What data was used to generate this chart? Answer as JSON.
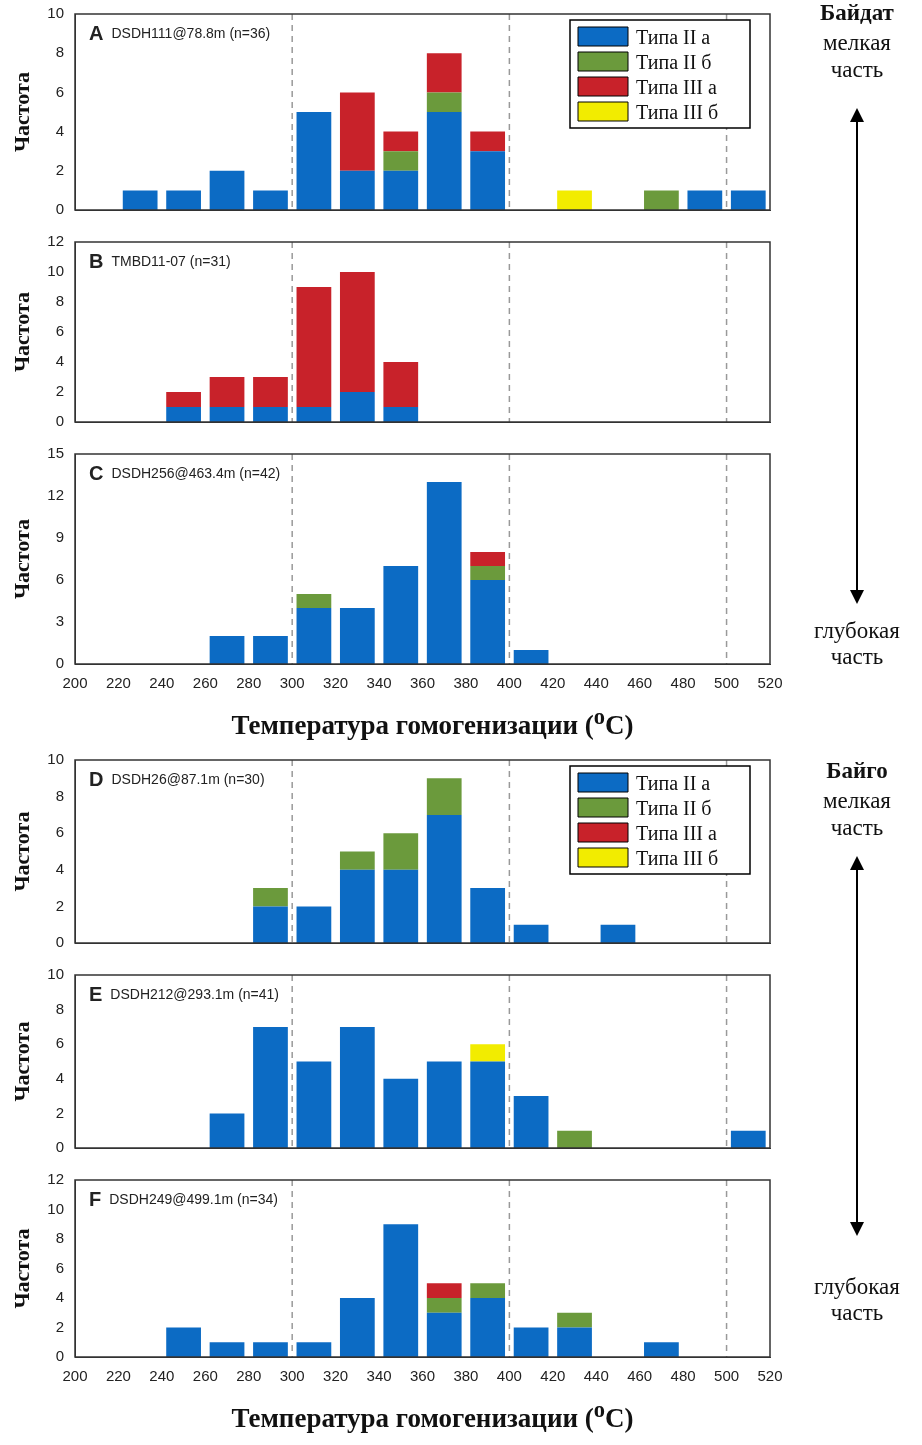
{
  "chart_data": [
    {
      "type": "bar",
      "ylabel": "Частота",
      "stacked": true,
      "legend": "top right",
      "tick_labels": "y",
      "x": [
        210,
        230,
        250,
        270,
        290,
        310,
        330,
        350,
        370,
        390,
        410,
        430,
        450,
        470,
        490,
        510
      ],
      "xlim": [
        200,
        520
      ],
      "xticks": [
        200,
        220,
        240,
        260,
        280,
        300,
        320,
        340,
        360,
        380,
        400,
        420,
        440,
        460,
        480,
        500,
        520
      ],
      "ylim": [
        0,
        10
      ],
      "yticks": [
        0,
        2,
        4,
        6,
        8,
        10
      ],
      "annotations": [
        "A",
        "DSDH111@78.8m (n=36)",
        "Байдат",
        "мелкая часть"
      ],
      "ref_lines": [
        {
          "axis": "x",
          "value": 300,
          "color": "#999999",
          "line_style": "dashed"
        },
        {
          "axis": "x",
          "value": 400,
          "color": "#999999",
          "line_style": "dashed"
        },
        {
          "axis": "x",
          "value": 500,
          "color": "#999999",
          "line_style": "dashed"
        }
      ],
      "series": [
        {
          "name": "Типа II а",
          "color": "#0c6bc4",
          "values": [
            0,
            1,
            1,
            2,
            1,
            5,
            2,
            2,
            5,
            3,
            0,
            0,
            0,
            0,
            1,
            1
          ]
        },
        {
          "name": "Типа II б",
          "color": "#6b9a3c",
          "values": [
            0,
            0,
            0,
            0,
            0,
            0,
            0,
            1,
            1,
            0,
            0,
            0,
            0,
            1,
            0,
            0
          ]
        },
        {
          "name": "Типа III а",
          "color": "#c8222a",
          "values": [
            0,
            0,
            0,
            0,
            0,
            0,
            4,
            1,
            2,
            1,
            0,
            0,
            0,
            0,
            0,
            0
          ]
        },
        {
          "name": "Типа III б",
          "color": "#f2ec00",
          "values": [
            0,
            0,
            0,
            0,
            0,
            0,
            0,
            0,
            0,
            0,
            0,
            1,
            0,
            0,
            0,
            0
          ]
        }
      ]
    },
    {
      "type": "bar",
      "ylabel": "Частота",
      "stacked": true,
      "tick_labels": "y",
      "x": [
        210,
        230,
        250,
        270,
        290,
        310,
        330,
        350,
        370,
        390,
        410,
        430,
        450,
        470,
        490,
        510
      ],
      "xlim": [
        200,
        520
      ],
      "xticks": [
        200,
        220,
        240,
        260,
        280,
        300,
        320,
        340,
        360,
        380,
        400,
        420,
        440,
        460,
        480,
        500,
        520
      ],
      "ylim": [
        0,
        12
      ],
      "yticks": [
        0,
        2,
        4,
        6,
        8,
        10,
        12
      ],
      "annotations": [
        "B",
        "TMBD11-07 (n=31)"
      ],
      "ref_lines": [
        {
          "axis": "x",
          "value": 300,
          "color": "#999999",
          "line_style": "dashed"
        },
        {
          "axis": "x",
          "value": 400,
          "color": "#999999",
          "line_style": "dashed"
        },
        {
          "axis": "x",
          "value": 500,
          "color": "#999999",
          "line_style": "dashed"
        }
      ],
      "series": [
        {
          "color": "#0c6bc4",
          "values": [
            0,
            0,
            1,
            1,
            1,
            1,
            2,
            1,
            0,
            0,
            0,
            0,
            0,
            0,
            0,
            0
          ]
        },
        {
          "color": "#c8222a",
          "values": [
            0,
            0,
            1,
            2,
            2,
            8,
            8,
            3,
            0,
            0,
            0,
            0,
            0,
            0,
            0,
            0
          ]
        }
      ]
    },
    {
      "type": "bar",
      "ylabel": "Частота",
      "xlabel": "Температура гомогенизации ($^{o}$C)",
      "stacked": true,
      "x": [
        210,
        230,
        250,
        270,
        290,
        310,
        330,
        350,
        370,
        390,
        410,
        430,
        450,
        470,
        490,
        510
      ],
      "xlim": [
        200,
        520
      ],
      "xticks": [
        200,
        220,
        240,
        260,
        280,
        300,
        320,
        340,
        360,
        380,
        400,
        420,
        440,
        460,
        480,
        500,
        520
      ],
      "ylim": [
        0,
        15
      ],
      "yticks": [
        0,
        3,
        6,
        9,
        12,
        15
      ],
      "annotations": [
        "C",
        "DSDH256@463.4m (n=42)",
        "глубокая часть"
      ],
      "ref_lines": [
        {
          "axis": "x",
          "value": 300,
          "color": "#999999",
          "line_style": "dashed"
        },
        {
          "axis": "x",
          "value": 400,
          "color": "#999999",
          "line_style": "dashed"
        },
        {
          "axis": "x",
          "value": 500,
          "color": "#999999",
          "line_style": "dashed"
        }
      ],
      "series": [
        {
          "color": "#0c6bc4",
          "values": [
            0,
            0,
            0,
            2,
            2,
            4,
            4,
            7,
            13,
            6,
            1,
            0,
            0,
            0,
            0,
            0
          ]
        },
        {
          "color": "#6b9a3c",
          "values": [
            0,
            0,
            0,
            0,
            0,
            1,
            0,
            0,
            0,
            1,
            0,
            0,
            0,
            0,
            0,
            0
          ]
        },
        {
          "color": "#c8222a",
          "values": [
            0,
            0,
            0,
            0,
            0,
            0,
            0,
            0,
            0,
            1,
            0,
            0,
            0,
            0,
            0,
            0
          ]
        }
      ]
    },
    {
      "type": "bar",
      "ylabel": "Частота",
      "stacked": true,
      "legend": "top right",
      "tick_labels": "y",
      "x": [
        210,
        230,
        250,
        270,
        290,
        310,
        330,
        350,
        370,
        390,
        410,
        430,
        450,
        470,
        490,
        510
      ],
      "xlim": [
        200,
        520
      ],
      "xticks": [
        200,
        220,
        240,
        260,
        280,
        300,
        320,
        340,
        360,
        380,
        400,
        420,
        440,
        460,
        480,
        500,
        520
      ],
      "ylim": [
        0,
        10
      ],
      "yticks": [
        0,
        2,
        4,
        6,
        8,
        10
      ],
      "annotations": [
        "D",
        "DSDH26@87.1m (n=30)",
        "Байго",
        "мелкая часть"
      ],
      "ref_lines": [
        {
          "axis": "x",
          "value": 300,
          "color": "#999999",
          "line_style": "dashed"
        },
        {
          "axis": "x",
          "value": 400,
          "color": "#999999",
          "line_style": "dashed"
        },
        {
          "axis": "x",
          "value": 500,
          "color": "#999999",
          "line_style": "dashed"
        }
      ],
      "series": [
        {
          "name": "Типа II а",
          "color": "#0c6bc4",
          "values": [
            0,
            0,
            0,
            0,
            2,
            2,
            4,
            4,
            7,
            3,
            1,
            0,
            1,
            0,
            0,
            0
          ]
        },
        {
          "name": "Типа II б",
          "color": "#6b9a3c",
          "values": [
            0,
            0,
            0,
            0,
            1,
            0,
            1,
            2,
            2,
            0,
            0,
            0,
            0,
            0,
            0,
            0
          ]
        },
        {
          "name": "Типа III а",
          "color": "#c8222a",
          "values": [
            0,
            0,
            0,
            0,
            0,
            0,
            0,
            0,
            0,
            0,
            0,
            0,
            0,
            0,
            0,
            0
          ]
        },
        {
          "name": "Типа III б",
          "color": "#f2ec00",
          "values": [
            0,
            0,
            0,
            0,
            0,
            0,
            0,
            0,
            0,
            0,
            0,
            0,
            0,
            0,
            0,
            0
          ]
        }
      ]
    },
    {
      "type": "bar",
      "ylabel": "Частота",
      "stacked": true,
      "tick_labels": "y",
      "x": [
        210,
        230,
        250,
        270,
        290,
        310,
        330,
        350,
        370,
        390,
        410,
        430,
        450,
        470,
        490,
        510
      ],
      "xlim": [
        200,
        520
      ],
      "xticks": [
        200,
        220,
        240,
        260,
        280,
        300,
        320,
        340,
        360,
        380,
        400,
        420,
        440,
        460,
        480,
        500,
        520
      ],
      "ylim": [
        0,
        10
      ],
      "yticks": [
        0,
        2,
        4,
        6,
        8,
        10
      ],
      "annotations": [
        "E",
        "DSDH212@293.1m (n=41)"
      ],
      "ref_lines": [
        {
          "axis": "x",
          "value": 300,
          "color": "#999999",
          "line_style": "dashed"
        },
        {
          "axis": "x",
          "value": 400,
          "color": "#999999",
          "line_style": "dashed"
        },
        {
          "axis": "x",
          "value": 500,
          "color": "#999999",
          "line_style": "dashed"
        }
      ],
      "series": [
        {
          "color": "#0c6bc4",
          "values": [
            0,
            0,
            0,
            2,
            7,
            5,
            7,
            4,
            5,
            5,
            3,
            0,
            0,
            0,
            0,
            1
          ]
        },
        {
          "color": "#6b9a3c",
          "values": [
            0,
            0,
            0,
            0,
            0,
            0,
            0,
            0,
            0,
            0,
            0,
            1,
            0,
            0,
            0,
            0
          ]
        },
        {
          "color": "#f2ec00",
          "values": [
            0,
            0,
            0,
            0,
            0,
            0,
            0,
            0,
            0,
            1,
            0,
            0,
            0,
            0,
            0,
            0
          ]
        }
      ]
    },
    {
      "type": "bar",
      "ylabel": "Частота",
      "xlabel": "Температура гомогенизации ($^{o}$C)",
      "stacked": true,
      "x": [
        210,
        230,
        250,
        270,
        290,
        310,
        330,
        350,
        370,
        390,
        410,
        430,
        450,
        470,
        490,
        510
      ],
      "xlim": [
        200,
        520
      ],
      "xticks": [
        200,
        220,
        240,
        260,
        280,
        300,
        320,
        340,
        360,
        380,
        400,
        420,
        440,
        460,
        480,
        500,
        520
      ],
      "ylim": [
        0,
        12
      ],
      "yticks": [
        0,
        2,
        4,
        6,
        8,
        10,
        12
      ],
      "annotations": [
        "F",
        "DSDH249@499.1m (n=34)",
        "глубокая часть"
      ],
      "ref_lines": [
        {
          "axis": "x",
          "value": 300,
          "color": "#999999",
          "line_style": "dashed"
        },
        {
          "axis": "x",
          "value": 400,
          "color": "#999999",
          "line_style": "dashed"
        },
        {
          "axis": "x",
          "value": 500,
          "color": "#999999",
          "line_style": "dashed"
        }
      ],
      "series": [
        {
          "color": "#0c6bc4",
          "values": [
            0,
            0,
            2,
            1,
            1,
            1,
            4,
            9,
            3,
            4,
            2,
            2,
            0,
            1,
            0,
            0
          ]
        },
        {
          "color": "#6b9a3c",
          "values": [
            0,
            0,
            0,
            0,
            0,
            0,
            0,
            0,
            1,
            1,
            0,
            1,
            0,
            0,
            0,
            0
          ]
        },
        {
          "color": "#c8222a",
          "values": [
            0,
            0,
            0,
            0,
            0,
            0,
            0,
            0,
            1,
            0,
            0,
            0,
            0,
            0,
            0,
            0
          ]
        }
      ]
    }
  ]
}
